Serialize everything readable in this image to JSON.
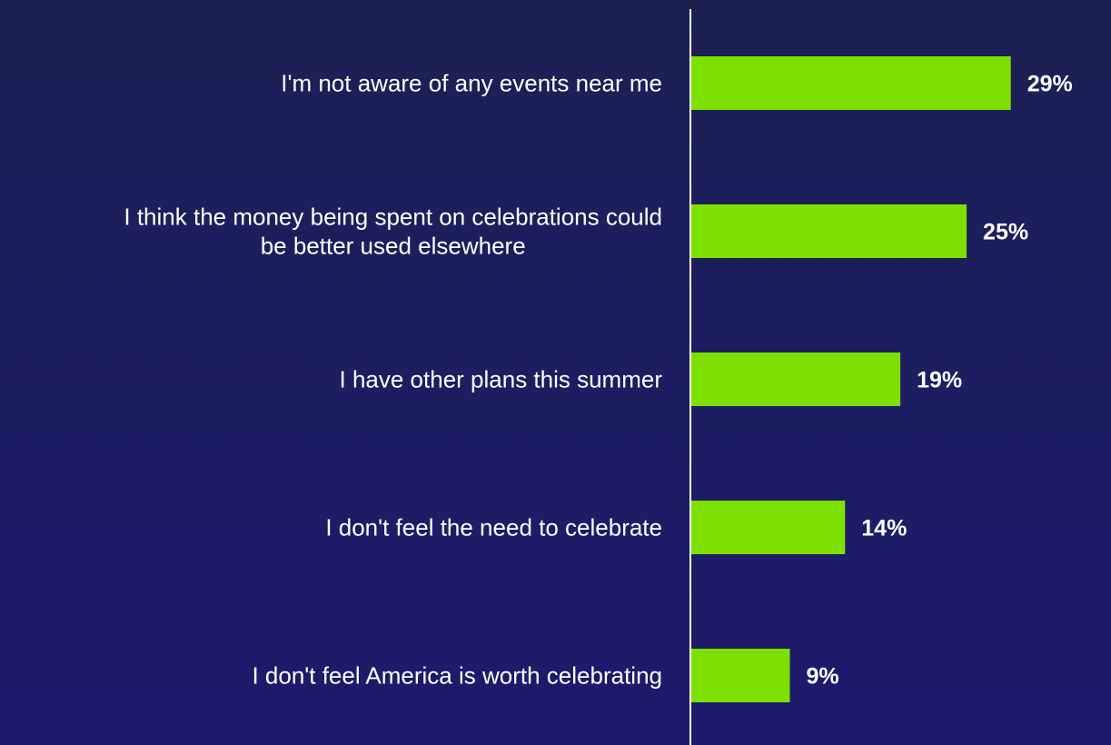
{
  "chart_data": {
    "type": "bar",
    "orientation": "horizontal",
    "categories": [
      [
        "I'm not aware of any events near me"
      ],
      [
        "I think the money being spent on celebrations could",
        "be better used elsewhere"
      ],
      [
        "I have other plans this summer"
      ],
      [
        "I don't feel the need to celebrate"
      ],
      [
        "I don't feel America is worth celebrating"
      ]
    ],
    "values": [
      29,
      25,
      19,
      14,
      9
    ],
    "value_labels": [
      "29%",
      "25%",
      "19%",
      "14%",
      "9%"
    ],
    "unit": "%",
    "xlim": [
      0,
      37
    ],
    "grid": false,
    "legend": "none",
    "colors": {
      "bar": "#7ee000",
      "text": "#ffffff",
      "axis": "#ffffff"
    }
  }
}
